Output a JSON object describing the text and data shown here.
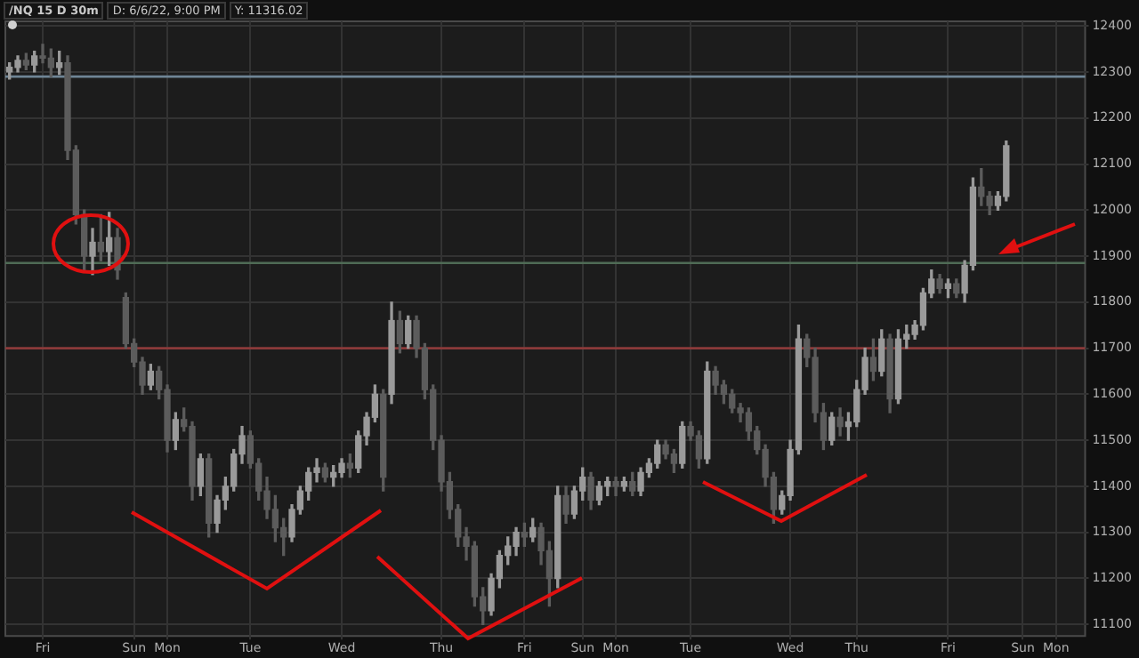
{
  "chart_data": {
    "type": "candlestick",
    "title": "/NQ 15 D 30m",
    "annotations": [
      "D: 6/6/22, 9:00 PM",
      "Y: 11316.02"
    ],
    "categories": [
      null,
      null,
      null,
      null,
      "Fri",
      null,
      null,
      null,
      null,
      null,
      null,
      null,
      null,
      null,
      null,
      "Sun",
      null,
      null,
      null,
      "Mon",
      null,
      null,
      null,
      null,
      null,
      null,
      null,
      null,
      null,
      "Tue",
      null,
      null,
      null,
      null,
      null,
      null,
      null,
      null,
      null,
      null,
      "Wed",
      null,
      null,
      null,
      null,
      null,
      null,
      null,
      null,
      null,
      null,
      null,
      "Thu",
      null,
      null,
      null,
      null,
      null,
      null,
      null,
      null,
      null,
      "Fri",
      null,
      null,
      null,
      null,
      null,
      null,
      "Sun",
      null,
      null,
      null,
      "Mon",
      null,
      null,
      null,
      null,
      null,
      null,
      null,
      null,
      "Tue",
      null,
      null,
      null,
      null,
      null,
      null,
      null,
      null,
      null,
      null,
      null,
      "Wed",
      null,
      null,
      null,
      null,
      null,
      null,
      null,
      "Thu",
      null,
      null,
      null,
      null,
      null,
      null,
      null,
      null,
      null,
      null,
      "Fri",
      null,
      null,
      null,
      null,
      null,
      null,
      null,
      null,
      "Sun",
      null,
      null,
      null,
      "Mon",
      null,
      null,
      null
    ],
    "ohlc": [
      [
        12300,
        12320,
        12285,
        12310
      ],
      [
        12310,
        12335,
        12300,
        12325
      ],
      [
        12325,
        12340,
        12305,
        12315
      ],
      [
        12315,
        12345,
        12300,
        12335
      ],
      [
        12335,
        12360,
        12320,
        12330
      ],
      [
        12330,
        12350,
        12290,
        12310
      ],
      [
        12310,
        12345,
        12295,
        12320
      ],
      [
        12320,
        12335,
        12110,
        12130
      ],
      [
        12130,
        12140,
        11970,
        11990
      ],
      [
        11990,
        12000,
        11870,
        11900
      ],
      [
        11900,
        11960,
        11860,
        11930
      ],
      [
        11930,
        11990,
        11890,
        11910
      ],
      [
        11910,
        11995,
        11880,
        11940
      ],
      [
        11940,
        11960,
        11850,
        11870
      ],
      [
        11810,
        11820,
        11700,
        11710
      ],
      [
        11710,
        11720,
        11660,
        11670
      ],
      [
        11670,
        11680,
        11600,
        11620
      ],
      [
        11620,
        11665,
        11610,
        11650
      ],
      [
        11650,
        11660,
        11590,
        11610
      ],
      [
        11610,
        11620,
        11475,
        11500
      ],
      [
        11500,
        11560,
        11480,
        11545
      ],
      [
        11545,
        11570,
        11520,
        11530
      ],
      [
        11530,
        11540,
        11370,
        11400
      ],
      [
        11400,
        11470,
        11380,
        11460
      ],
      [
        11460,
        11470,
        11290,
        11320
      ],
      [
        11320,
        11380,
        11300,
        11370
      ],
      [
        11370,
        11420,
        11350,
        11400
      ],
      [
        11400,
        11480,
        11390,
        11470
      ],
      [
        11470,
        11530,
        11450,
        11510
      ],
      [
        11510,
        11520,
        11440,
        11450
      ],
      [
        11450,
        11460,
        11370,
        11390
      ],
      [
        11390,
        11420,
        11330,
        11350
      ],
      [
        11350,
        11380,
        11280,
        11310
      ],
      [
        11310,
        11330,
        11250,
        11290
      ],
      [
        11290,
        11360,
        11280,
        11350
      ],
      [
        11350,
        11400,
        11340,
        11390
      ],
      [
        11390,
        11440,
        11370,
        11430
      ],
      [
        11430,
        11460,
        11410,
        11440
      ],
      [
        11440,
        11450,
        11410,
        11420
      ],
      [
        11420,
        11445,
        11400,
        11430
      ],
      [
        11430,
        11460,
        11420,
        11450
      ],
      [
        11450,
        11470,
        11420,
        11440
      ],
      [
        11440,
        11520,
        11430,
        11510
      ],
      [
        11510,
        11560,
        11490,
        11550
      ],
      [
        11550,
        11620,
        11540,
        11600
      ],
      [
        11600,
        11610,
        11390,
        11420
      ],
      [
        11600,
        11800,
        11580,
        11760
      ],
      [
        11760,
        11780,
        11690,
        11710
      ],
      [
        11710,
        11770,
        11700,
        11760
      ],
      [
        11760,
        11770,
        11680,
        11700
      ],
      [
        11700,
        11710,
        11590,
        11610
      ],
      [
        11610,
        11620,
        11480,
        11500
      ],
      [
        11500,
        11510,
        11390,
        11410
      ],
      [
        11410,
        11430,
        11330,
        11350
      ],
      [
        11350,
        11360,
        11270,
        11290
      ],
      [
        11290,
        11310,
        11240,
        11270
      ],
      [
        11270,
        11280,
        11140,
        11160
      ],
      [
        11160,
        11180,
        11100,
        11130
      ],
      [
        11130,
        11210,
        11120,
        11200
      ],
      [
        11200,
        11260,
        11180,
        11250
      ],
      [
        11250,
        11290,
        11230,
        11270
      ],
      [
        11270,
        11310,
        11250,
        11300
      ],
      [
        11300,
        11320,
        11270,
        11290
      ],
      [
        11290,
        11330,
        11280,
        11310
      ],
      [
        11310,
        11320,
        11230,
        11260
      ],
      [
        11260,
        11280,
        11140,
        11200
      ],
      [
        11200,
        11400,
        11180,
        11380
      ],
      [
        11380,
        11400,
        11320,
        11340
      ],
      [
        11340,
        11400,
        11330,
        11390
      ],
      [
        11390,
        11440,
        11370,
        11420
      ],
      [
        11420,
        11430,
        11350,
        11370
      ],
      [
        11370,
        11410,
        11360,
        11400
      ],
      [
        11400,
        11420,
        11380,
        11410
      ],
      [
        11410,
        11420,
        11380,
        11400
      ],
      [
        11400,
        11420,
        11390,
        11410
      ],
      [
        11410,
        11430,
        11380,
        11390
      ],
      [
        11390,
        11440,
        11380,
        11430
      ],
      [
        11430,
        11460,
        11420,
        11450
      ],
      [
        11450,
        11500,
        11440,
        11490
      ],
      [
        11490,
        11500,
        11460,
        11470
      ],
      [
        11470,
        11480,
        11430,
        11450
      ],
      [
        11450,
        11540,
        11440,
        11530
      ],
      [
        11530,
        11540,
        11500,
        11510
      ],
      [
        11510,
        11520,
        11440,
        11460
      ],
      [
        11460,
        11670,
        11450,
        11650
      ],
      [
        11650,
        11660,
        11600,
        11620
      ],
      [
        11620,
        11630,
        11580,
        11600
      ],
      [
        11600,
        11610,
        11560,
        11570
      ],
      [
        11570,
        11580,
        11540,
        11560
      ],
      [
        11560,
        11570,
        11500,
        11520
      ],
      [
        11520,
        11530,
        11470,
        11480
      ],
      [
        11480,
        11490,
        11400,
        11420
      ],
      [
        11420,
        11430,
        11320,
        11350
      ],
      [
        11350,
        11390,
        11340,
        11380
      ],
      [
        11380,
        11500,
        11370,
        11480
      ],
      [
        11480,
        11750,
        11470,
        11720
      ],
      [
        11720,
        11730,
        11660,
        11680
      ],
      [
        11680,
        11700,
        11540,
        11560
      ],
      [
        11560,
        11580,
        11480,
        11500
      ],
      [
        11500,
        11560,
        11490,
        11550
      ],
      [
        11550,
        11570,
        11510,
        11530
      ],
      [
        11530,
        11560,
        11500,
        11540
      ],
      [
        11540,
        11630,
        11530,
        11610
      ],
      [
        11610,
        11700,
        11600,
        11680
      ],
      [
        11680,
        11720,
        11630,
        11650
      ],
      [
        11650,
        11740,
        11640,
        11720
      ],
      [
        11720,
        11730,
        11560,
        11590
      ],
      [
        11590,
        11740,
        11580,
        11720
      ],
      [
        11720,
        11750,
        11700,
        11730
      ],
      [
        11730,
        11760,
        11720,
        11750
      ],
      [
        11750,
        11830,
        11740,
        11820
      ],
      [
        11820,
        11870,
        11810,
        11850
      ],
      [
        11850,
        11860,
        11820,
        11830
      ],
      [
        11830,
        11850,
        11810,
        11840
      ],
      [
        11840,
        11850,
        11810,
        11820
      ],
      [
        11820,
        11890,
        11800,
        11880
      ],
      [
        11880,
        12070,
        11870,
        12050
      ],
      [
        12050,
        12090,
        12010,
        12030
      ],
      [
        12030,
        12040,
        11990,
        12010
      ],
      [
        12010,
        12040,
        12000,
        12030
      ],
      [
        12030,
        12150,
        12020,
        12140
      ],
      null,
      null,
      null,
      null,
      null,
      null,
      null,
      null,
      null
    ],
    "colors": [
      "#9a9a9a",
      "#9a9a9a",
      "#5c5c5c",
      "#9a9a9a",
      "#5c5c5c",
      "#5c5c5c",
      "#9a9a9a",
      "#5c5c5c",
      "#5c5c5c",
      "#5c5c5c",
      "#9a9a9a",
      "#5c5c5c",
      "#9a9a9a",
      "#5c5c5c",
      "#5c5c5c",
      "#5c5c5c",
      "#5c5c5c",
      "#9a9a9a",
      "#5c5c5c",
      "#5c5c5c",
      "#9a9a9a",
      "#5c5c5c",
      "#5c5c5c",
      "#9a9a9a",
      "#5c5c5c",
      "#9a9a9a",
      "#9a9a9a",
      "#9a9a9a",
      "#9a9a9a",
      "#5c5c5c",
      "#5c5c5c",
      "#5c5c5c",
      "#5c5c5c",
      "#5c5c5c",
      "#9a9a9a",
      "#9a9a9a",
      "#9a9a9a",
      "#9a9a9a",
      "#5c5c5c",
      "#9a9a9a",
      "#9a9a9a",
      "#5c5c5c",
      "#9a9a9a",
      "#9a9a9a",
      "#9a9a9a",
      "#5c5c5c",
      "#9a9a9a",
      "#5c5c5c",
      "#9a9a9a",
      "#5c5c5c",
      "#5c5c5c",
      "#5c5c5c",
      "#5c5c5c",
      "#5c5c5c",
      "#5c5c5c",
      "#5c5c5c",
      "#5c5c5c",
      "#5c5c5c",
      "#9a9a9a",
      "#9a9a9a",
      "#9a9a9a",
      "#9a9a9a",
      "#5c5c5c",
      "#9a9a9a",
      "#5c5c5c",
      "#5c5c5c",
      "#9a9a9a",
      "#5c5c5c",
      "#9a9a9a",
      "#9a9a9a",
      "#5c5c5c",
      "#9a9a9a",
      "#9a9a9a",
      "#5c5c5c",
      "#9a9a9a",
      "#5c5c5c",
      "#9a9a9a",
      "#9a9a9a",
      "#9a9a9a",
      "#5c5c5c",
      "#5c5c5c",
      "#9a9a9a",
      "#5c5c5c",
      "#5c5c5c",
      "#9a9a9a",
      "#5c5c5c",
      "#5c5c5c",
      "#5c5c5c",
      "#5c5c5c",
      "#5c5c5c",
      "#5c5c5c",
      "#5c5c5c",
      "#5c5c5c",
      "#9a9a9a",
      "#9a9a9a",
      "#9a9a9a",
      "#5c5c5c",
      "#5c5c5c",
      "#5c5c5c",
      "#9a9a9a",
      "#5c5c5c",
      "#9a9a9a",
      "#9a9a9a",
      "#9a9a9a",
      "#5c5c5c",
      "#9a9a9a",
      "#5c5c5c",
      "#9a9a9a",
      "#9a9a9a",
      "#9a9a9a",
      "#9a9a9a",
      "#9a9a9a",
      "#5c5c5c",
      "#9a9a9a",
      "#5c5c5c",
      "#9a9a9a",
      "#9a9a9a",
      "#5c5c5c",
      "#5c5c5c",
      "#9a9a9a",
      "#9a9a9a",
      null,
      null,
      null,
      null,
      null,
      null,
      null,
      null,
      null
    ],
    "ylim": [
      11075,
      12410
    ],
    "yticks": [
      11100,
      11200,
      11300,
      11400,
      11500,
      11600,
      11700,
      11800,
      11900,
      12000,
      12100,
      12200,
      12300,
      12400
    ],
    "ref_lines": [
      {
        "axis": "y",
        "value": 12290,
        "color": "#6f8596"
      },
      {
        "axis": "y",
        "value": 11885,
        "color": "#4f6b55"
      },
      {
        "axis": "y",
        "value": 11700,
        "color": "#8b3a3a"
      }
    ],
    "grid": true
  }
}
